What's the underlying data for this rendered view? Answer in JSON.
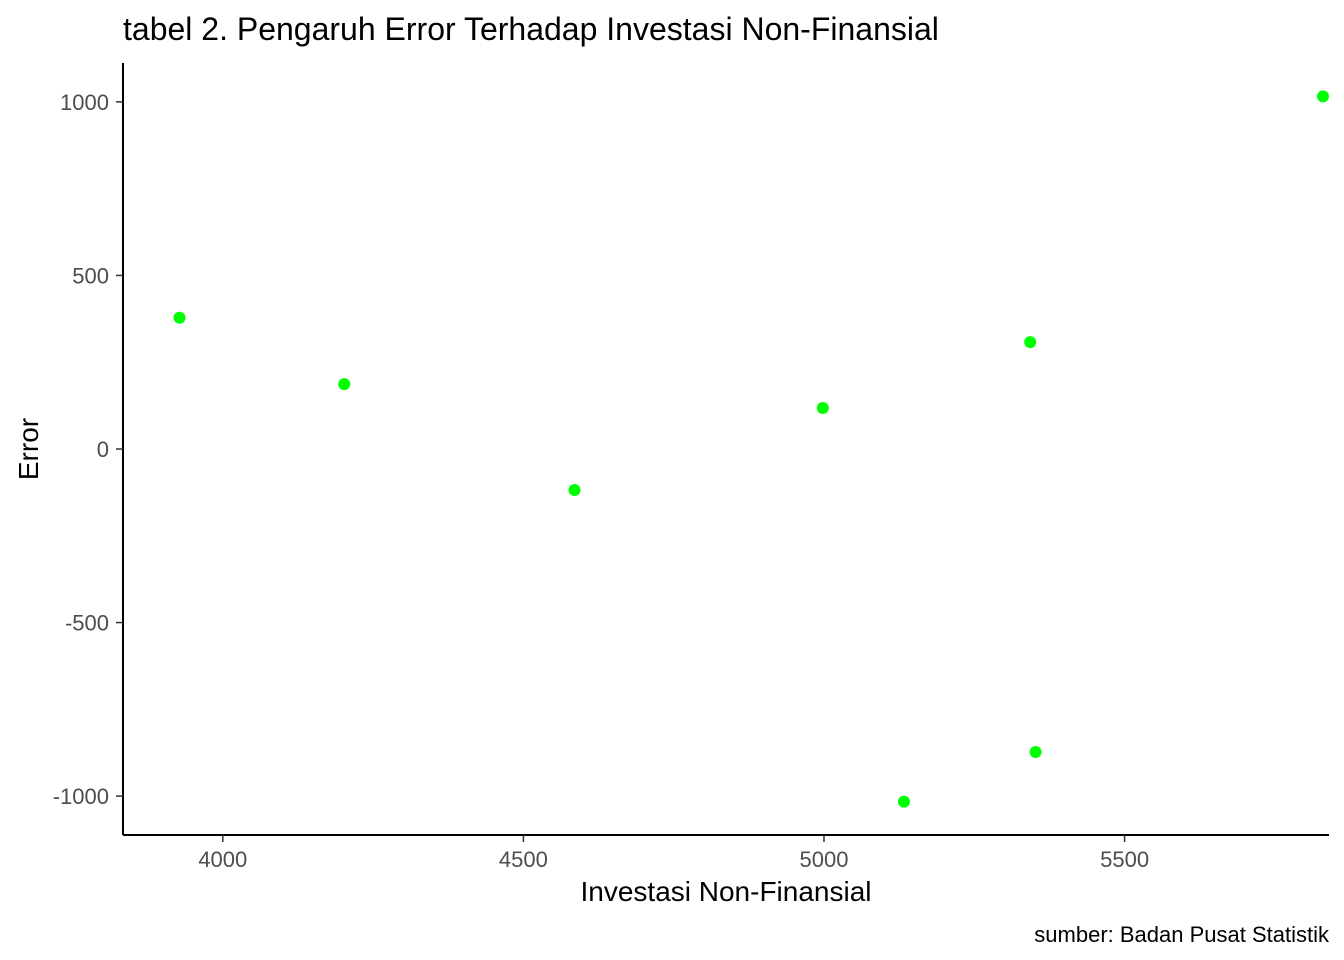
{
  "chart_data": {
    "type": "scatter",
    "title": "tabel 2. Pengaruh Error Terhadap Investasi Non-Finansial",
    "xlabel": "Investasi Non-Finansial",
    "ylabel": "Error",
    "caption": "sumber: Badan Pusat Statistik",
    "xlim": [
      3834,
      5840
    ],
    "ylim": [
      -1112,
      1112
    ],
    "x_ticks": [
      4000,
      4500,
      5000,
      5500
    ],
    "y_ticks": [
      -1000,
      -500,
      0,
      500,
      1000
    ],
    "grid": false,
    "legend": "none",
    "point_color": "#00ff00",
    "points": [
      {
        "x": 3928,
        "y": 378
      },
      {
        "x": 4202,
        "y": 187
      },
      {
        "x": 4585,
        "y": -118
      },
      {
        "x": 4998,
        "y": 118
      },
      {
        "x": 5133,
        "y": -1016
      },
      {
        "x": 5343,
        "y": 308
      },
      {
        "x": 5352,
        "y": -873
      },
      {
        "x": 5830,
        "y": 1016
      }
    ]
  }
}
